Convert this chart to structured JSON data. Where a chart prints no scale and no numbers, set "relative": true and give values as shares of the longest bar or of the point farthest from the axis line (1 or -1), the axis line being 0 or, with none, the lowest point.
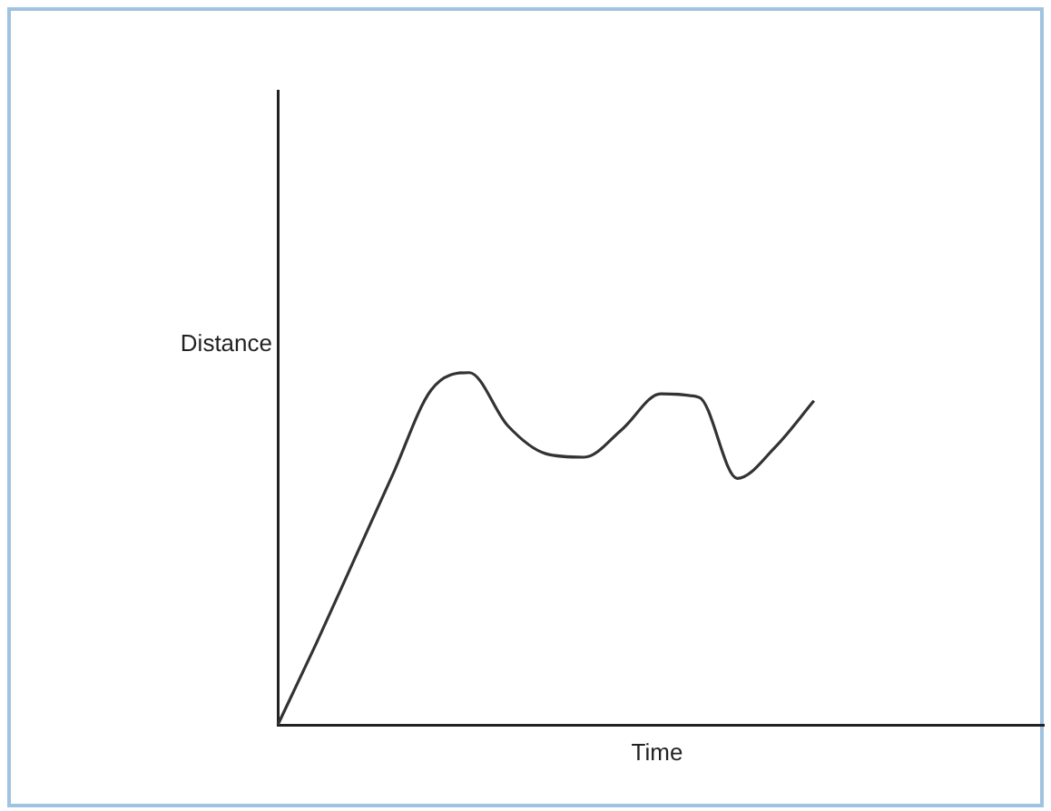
{
  "chart_data": {
    "type": "line",
    "relative": true,
    "xlabel": "Time",
    "ylabel": "Distance",
    "grid": false,
    "legend": false,
    "marker": "none",
    "line_style": "solid",
    "categories": [
      null,
      null,
      null,
      null,
      null,
      null,
      null,
      null,
      null,
      null,
      null,
      null,
      null,
      null,
      null,
      null,
      null,
      null,
      null,
      null,
      null
    ],
    "series": [
      {
        "color": "#333333",
        "values": [
          0,
          0.23,
          0.47,
          0.71,
          0.95,
          1,
          0.85,
          0.77,
          0.76,
          0.84,
          0.94,
          0.93,
          0.7,
          0.79,
          0.92,
          null,
          null,
          null,
          null,
          null,
          null
        ]
      }
    ]
  }
}
